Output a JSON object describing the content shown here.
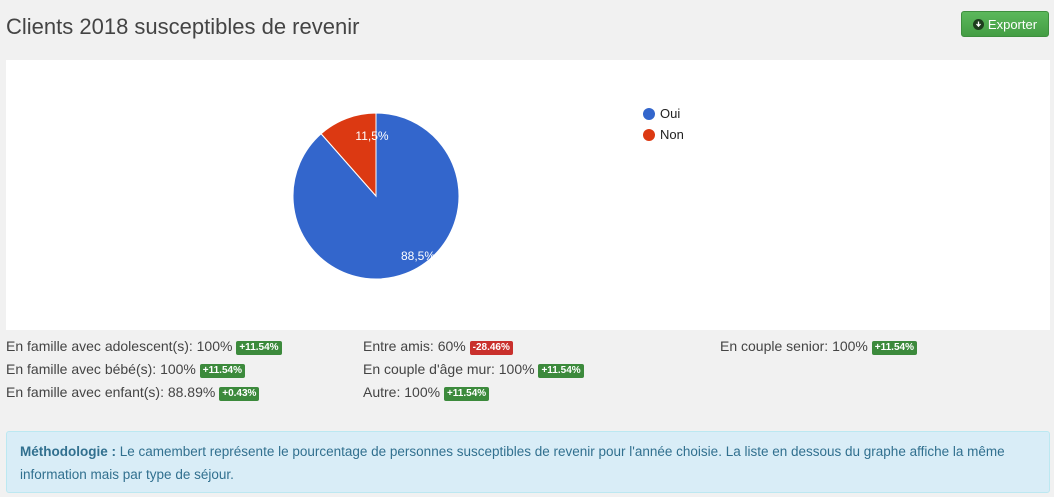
{
  "header": {
    "title": "Clients 2018 susceptibles de revenir",
    "export_label": "Exporter"
  },
  "chart_data": {
    "type": "pie",
    "categories": [
      "Oui",
      "Non"
    ],
    "values": [
      88.5,
      11.5
    ],
    "slice_labels": [
      "88,5%",
      "11,5%"
    ],
    "colors": [
      "#3366cc",
      "#dc3912"
    ],
    "legend_position": "right"
  },
  "stats": {
    "col1": [
      {
        "label": "En famille avec adolescent(s): 100%",
        "badge": "+11.54%",
        "trend": "pos"
      },
      {
        "label": "En famille avec bébé(s): 100%",
        "badge": "+11.54%",
        "trend": "pos"
      },
      {
        "label": "En famille avec enfant(s): 88.89%",
        "badge": "+0.43%",
        "trend": "pos"
      }
    ],
    "col2": [
      {
        "label": "Entre amis: 60%",
        "badge": "-28.46%",
        "trend": "neg"
      },
      {
        "label": "En couple d'âge mur: 100%",
        "badge": "+11.54%",
        "trend": "pos"
      },
      {
        "label": "Autre: 100%",
        "badge": "+11.54%",
        "trend": "pos"
      }
    ],
    "col3": [
      {
        "label": "En couple senior: 100%",
        "badge": "+11.54%",
        "trend": "pos"
      }
    ]
  },
  "methodology": {
    "heading": "Méthodologie :",
    "text": "Le camembert représente le pourcentage de personnes susceptibles de revenir pour l'année choisie. La liste en dessous du graphe affiche la même information mais par type de séjour."
  }
}
